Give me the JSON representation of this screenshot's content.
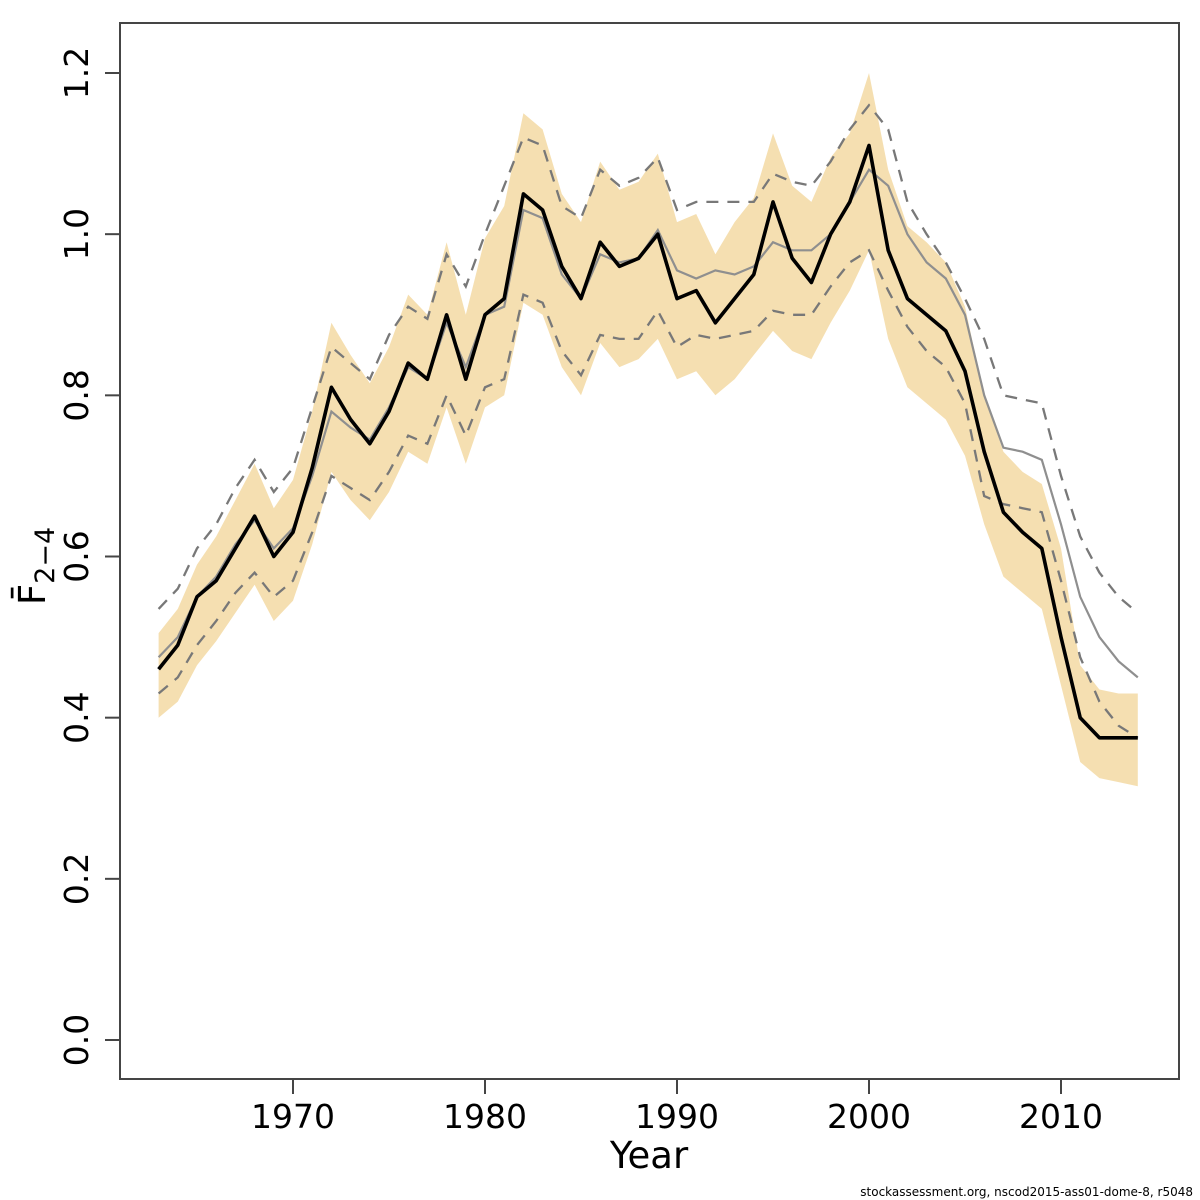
{
  "footer": "stockassessment.org, nscod2015-ass01-dome-8, r5048",
  "chart_data": {
    "type": "line",
    "title": "",
    "xlabel": "Year",
    "ylabel_main": "F̄",
    "ylabel_sub": "2−4",
    "x_ticks": [
      1970,
      1980,
      1990,
      2000,
      2010
    ],
    "y_ticks": [
      "0.0",
      "0.2",
      "0.4",
      "0.6",
      "0.8",
      "1.0",
      "1.2"
    ],
    "xlim": [
      1962.5,
      2014.8
    ],
    "ylim": [
      -0.05,
      1.25
    ],
    "grid": "off",
    "legend": "none",
    "colors": {
      "band_fill": "#f5dfb1",
      "current_line": "#000000",
      "previous_line": "#8f8f8f",
      "dashed_ci": "#787878",
      "axis": "#454545",
      "text": "#000000"
    },
    "years": [
      1963,
      1964,
      1965,
      1966,
      1967,
      1968,
      1969,
      1970,
      1971,
      1972,
      1973,
      1974,
      1975,
      1976,
      1977,
      1978,
      1979,
      1980,
      1981,
      1982,
      1983,
      1984,
      1985,
      1986,
      1987,
      1988,
      1989,
      1990,
      1991,
      1992,
      1993,
      1994,
      1995,
      1996,
      1997,
      1998,
      1999,
      2000,
      2001,
      2002,
      2003,
      2004,
      2005,
      2006,
      2007,
      2008,
      2009,
      2010,
      2011,
      2012,
      2013,
      2014
    ],
    "series": [
      {
        "name": "F current assessment (black solid median)",
        "values": [
          0.46,
          0.49,
          0.55,
          0.57,
          0.61,
          0.65,
          0.6,
          0.63,
          0.71,
          0.81,
          0.77,
          0.74,
          0.78,
          0.84,
          0.82,
          0.9,
          0.82,
          0.9,
          0.92,
          1.05,
          1.03,
          0.96,
          0.92,
          0.99,
          0.96,
          0.97,
          1.0,
          0.92,
          0.93,
          0.89,
          0.92,
          0.95,
          1.04,
          0.97,
          0.94,
          1.0,
          1.04,
          1.11,
          0.98,
          0.92,
          0.9,
          0.88,
          0.83,
          0.73,
          0.655,
          0.63,
          0.61,
          0.5,
          0.4,
          0.375,
          0.375,
          0.375
        ]
      },
      {
        "name": "F previous assessment (gray solid)",
        "values": [
          0.475,
          0.5,
          0.55,
          0.575,
          0.615,
          0.645,
          0.61,
          0.635,
          0.7,
          0.78,
          0.76,
          0.745,
          0.785,
          0.835,
          0.82,
          0.89,
          0.835,
          0.9,
          0.91,
          1.03,
          1.02,
          0.95,
          0.92,
          0.975,
          0.965,
          0.97,
          1.005,
          0.955,
          0.945,
          0.955,
          0.95,
          0.96,
          0.99,
          0.98,
          0.98,
          1.0,
          1.04,
          1.08,
          1.06,
          1.0,
          0.965,
          0.945,
          0.9,
          0.8,
          0.735,
          0.73,
          0.72,
          0.64,
          0.55,
          0.5,
          0.47,
          0.45
        ]
      },
      {
        "name": "CI band lower (tan shading, current)",
        "values": [
          0.4,
          0.42,
          0.465,
          0.495,
          0.53,
          0.565,
          0.52,
          0.545,
          0.615,
          0.705,
          0.67,
          0.645,
          0.68,
          0.73,
          0.715,
          0.785,
          0.715,
          0.785,
          0.8,
          0.915,
          0.9,
          0.835,
          0.8,
          0.865,
          0.835,
          0.845,
          0.87,
          0.82,
          0.83,
          0.8,
          0.82,
          0.85,
          0.88,
          0.855,
          0.845,
          0.89,
          0.93,
          0.98,
          0.87,
          0.81,
          0.79,
          0.77,
          0.725,
          0.64,
          0.575,
          0.555,
          0.535,
          0.44,
          0.345,
          0.325,
          0.32,
          0.315
        ]
      },
      {
        "name": "CI band upper (tan shading, current)",
        "values": [
          0.505,
          0.535,
          0.59,
          0.625,
          0.67,
          0.715,
          0.66,
          0.695,
          0.78,
          0.89,
          0.85,
          0.815,
          0.86,
          0.925,
          0.9,
          0.99,
          0.9,
          0.995,
          1.035,
          1.15,
          1.13,
          1.05,
          1.015,
          1.09,
          1.055,
          1.065,
          1.1,
          1.015,
          1.025,
          0.975,
          1.015,
          1.045,
          1.125,
          1.06,
          1.04,
          1.095,
          1.125,
          1.2,
          1.08,
          1.01,
          0.99,
          0.965,
          0.91,
          0.8,
          0.73,
          0.705,
          0.69,
          0.61,
          0.465,
          0.435,
          0.43,
          0.43
        ]
      },
      {
        "name": "CI lower (gray dashed, previous)",
        "values": [
          0.43,
          0.45,
          0.49,
          0.52,
          0.555,
          0.58,
          0.55,
          0.57,
          0.63,
          0.7,
          0.685,
          0.67,
          0.705,
          0.75,
          0.74,
          0.8,
          0.75,
          0.81,
          0.82,
          0.925,
          0.915,
          0.855,
          0.825,
          0.875,
          0.87,
          0.87,
          0.905,
          0.86,
          0.875,
          0.87,
          0.875,
          0.88,
          0.905,
          0.9,
          0.9,
          0.935,
          0.965,
          0.98,
          0.93,
          0.885,
          0.855,
          0.835,
          0.79,
          0.675,
          0.665,
          0.66,
          0.655,
          0.57,
          0.475,
          0.42,
          0.39,
          0.375
        ]
      },
      {
        "name": "CI upper (gray dashed, previous)",
        "values": [
          0.535,
          0.56,
          0.61,
          0.64,
          0.685,
          0.72,
          0.68,
          0.71,
          0.785,
          0.86,
          0.84,
          0.82,
          0.875,
          0.91,
          0.895,
          0.975,
          0.935,
          1.0,
          1.06,
          1.12,
          1.11,
          1.035,
          1.02,
          1.08,
          1.06,
          1.07,
          1.095,
          1.03,
          1.04,
          1.04,
          1.04,
          1.04,
          1.075,
          1.065,
          1.06,
          1.09,
          1.13,
          1.16,
          1.13,
          1.04,
          1.0,
          0.965,
          0.92,
          0.87,
          0.8,
          0.795,
          0.79,
          0.7,
          0.625,
          0.58,
          0.55,
          0.53
        ]
      }
    ]
  }
}
